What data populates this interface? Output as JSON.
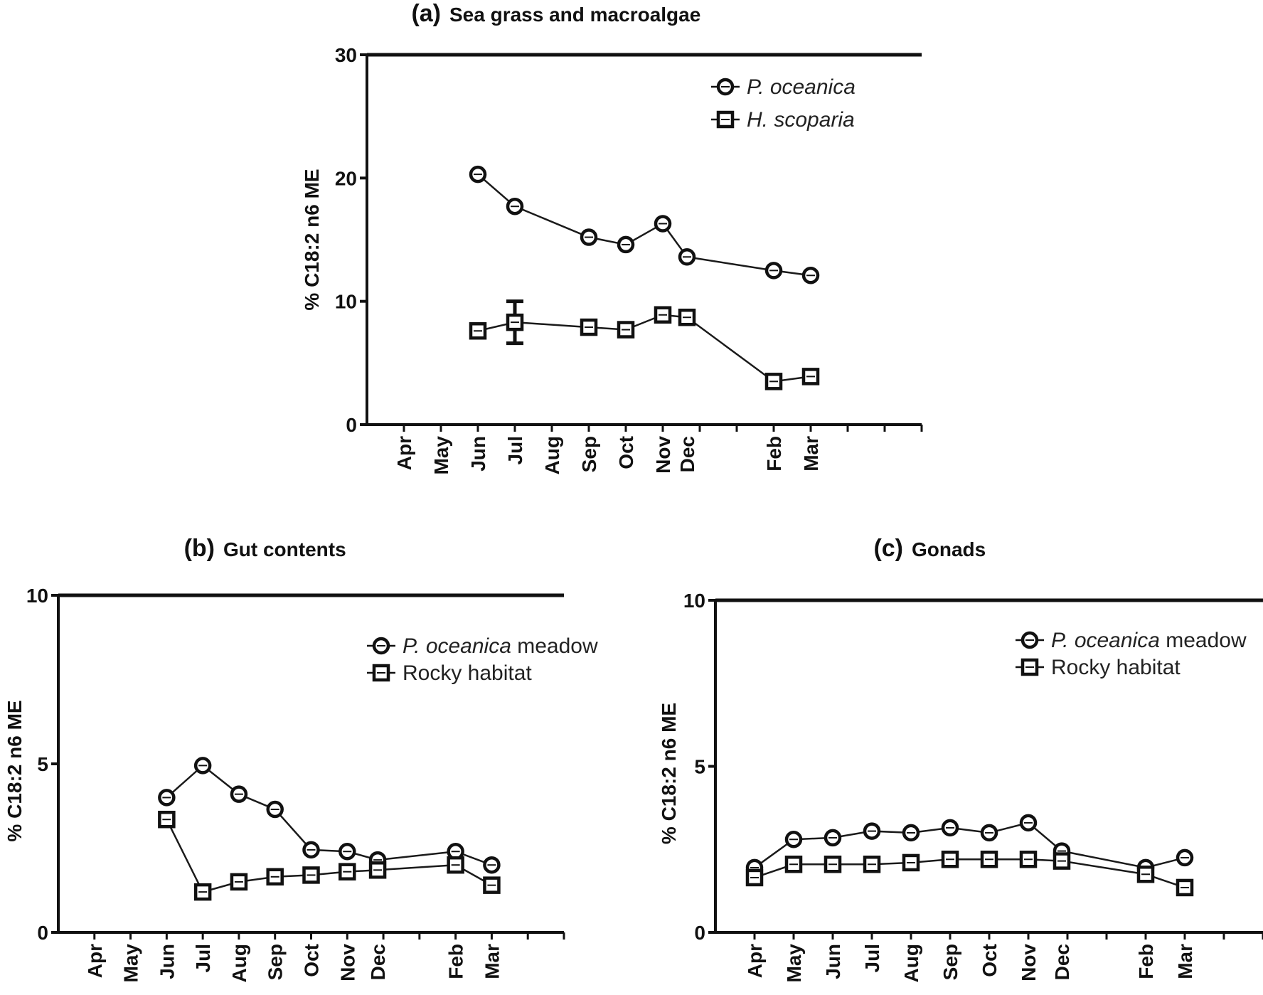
{
  "chart_data": [
    {
      "type": "line",
      "panel": "(a)",
      "title": "Sea grass and macroalgae",
      "ylabel": "% C18:2 n6 ME",
      "xlabel": "",
      "ylim": [
        0,
        30
      ],
      "yticks": [
        0,
        10,
        20,
        30
      ],
      "month_ticks": [
        "Apr",
        "May",
        "Jun",
        "Jul",
        "Aug",
        "Sep",
        "Oct",
        "Nov",
        "Dec",
        "Feb",
        "Mar"
      ],
      "legend_position": "top-right",
      "series": [
        {
          "name": "P. oceanica",
          "name_italic": "P. oceanica",
          "name_rest": "",
          "marker": "circle",
          "points": [
            {
              "month": "Jun",
              "value": 20.3
            },
            {
              "month": "Jul",
              "value": 17.7
            },
            {
              "month": "Sep",
              "value": 15.2
            },
            {
              "month": "Oct",
              "value": 14.6
            },
            {
              "month": "Nov",
              "value": 16.3
            },
            {
              "month": "Dec",
              "value": 13.6
            },
            {
              "month": "Feb",
              "value": 12.5
            },
            {
              "month": "Mar",
              "value": 12.1
            }
          ]
        },
        {
          "name": "H. scoparia",
          "name_italic": "H. scoparia",
          "name_rest": "",
          "marker": "square",
          "points": [
            {
              "month": "Jun",
              "value": 7.6
            },
            {
              "month": "Jul",
              "value": 8.3,
              "error": 1.7
            },
            {
              "month": "Sep",
              "value": 7.9
            },
            {
              "month": "Oct",
              "value": 7.7
            },
            {
              "month": "Nov",
              "value": 8.9
            },
            {
              "month": "Dec",
              "value": 8.7
            },
            {
              "month": "Feb",
              "value": 3.5
            },
            {
              "month": "Mar",
              "value": 3.9
            }
          ]
        }
      ]
    },
    {
      "type": "line",
      "panel": "(b)",
      "title": "Gut contents",
      "ylabel": "% C18:2 n6 ME",
      "xlabel": "",
      "ylim": [
        0,
        10
      ],
      "yticks": [
        0,
        5,
        10
      ],
      "month_ticks": [
        "Apr",
        "May",
        "Jun",
        "Jul",
        "Aug",
        "Sep",
        "Oct",
        "Nov",
        "Dec",
        "Feb",
        "Mar"
      ],
      "legend_position": "top-right",
      "series": [
        {
          "name": "P. oceanica meadow",
          "name_italic": "P. oceanica",
          "name_rest": " meadow",
          "marker": "circle",
          "points": [
            {
              "month": "Jun",
              "value": 4.0
            },
            {
              "month": "Jul",
              "value": 4.95
            },
            {
              "month": "Aug",
              "value": 4.1
            },
            {
              "month": "Sep",
              "value": 3.65
            },
            {
              "month": "Oct",
              "value": 2.45
            },
            {
              "month": "Nov",
              "value": 2.4
            },
            {
              "month": "Dec",
              "value": 2.15
            },
            {
              "month": "Feb",
              "value": 2.4
            },
            {
              "month": "Mar",
              "value": 2.0
            }
          ]
        },
        {
          "name": "Rocky habitat",
          "name_italic": "",
          "name_rest": "Rocky habitat",
          "marker": "square",
          "points": [
            {
              "month": "Jun",
              "value": 3.35
            },
            {
              "month": "Jul",
              "value": 1.2
            },
            {
              "month": "Aug",
              "value": 1.5
            },
            {
              "month": "Sep",
              "value": 1.65
            },
            {
              "month": "Oct",
              "value": 1.7
            },
            {
              "month": "Nov",
              "value": 1.8
            },
            {
              "month": "Dec",
              "value": 1.85
            },
            {
              "month": "Feb",
              "value": 2.0
            },
            {
              "month": "Mar",
              "value": 1.4
            }
          ]
        }
      ]
    },
    {
      "type": "line",
      "panel": "(c)",
      "title": "Gonads",
      "ylabel": "% C18:2 n6 ME",
      "xlabel": "",
      "ylim": [
        0,
        10
      ],
      "yticks": [
        0,
        5,
        10
      ],
      "month_ticks": [
        "Apr",
        "May",
        "Jun",
        "Jul",
        "Aug",
        "Sep",
        "Oct",
        "Nov",
        "Dec",
        "Feb",
        "Mar"
      ],
      "legend_position": "top-right",
      "series": [
        {
          "name": "P. oceanica meadow",
          "name_italic": "P. oceanica",
          "name_rest": " meadow",
          "marker": "circle",
          "points": [
            {
              "month": "Apr",
              "value": 1.95
            },
            {
              "month": "May",
              "value": 2.8
            },
            {
              "month": "Jun",
              "value": 2.85
            },
            {
              "month": "Jul",
              "value": 3.05
            },
            {
              "month": "Aug",
              "value": 3.0
            },
            {
              "month": "Sep",
              "value": 3.15
            },
            {
              "month": "Oct",
              "value": 3.0
            },
            {
              "month": "Nov",
              "value": 3.3
            },
            {
              "month": "Dec",
              "value": 2.45
            },
            {
              "month": "Feb",
              "value": 1.95
            },
            {
              "month": "Mar",
              "value": 2.25
            }
          ]
        },
        {
          "name": "Rocky habitat",
          "name_italic": "",
          "name_rest": "Rocky habitat",
          "marker": "square",
          "points": [
            {
              "month": "Apr",
              "value": 1.65
            },
            {
              "month": "May",
              "value": 2.05
            },
            {
              "month": "Jun",
              "value": 2.05
            },
            {
              "month": "Jul",
              "value": 2.05
            },
            {
              "month": "Aug",
              "value": 2.1
            },
            {
              "month": "Sep",
              "value": 2.2
            },
            {
              "month": "Oct",
              "value": 2.2
            },
            {
              "month": "Nov",
              "value": 2.2
            },
            {
              "month": "Dec",
              "value": 2.15
            },
            {
              "month": "Feb",
              "value": 1.75
            },
            {
              "month": "Mar",
              "value": 1.35
            }
          ]
        }
      ]
    }
  ]
}
